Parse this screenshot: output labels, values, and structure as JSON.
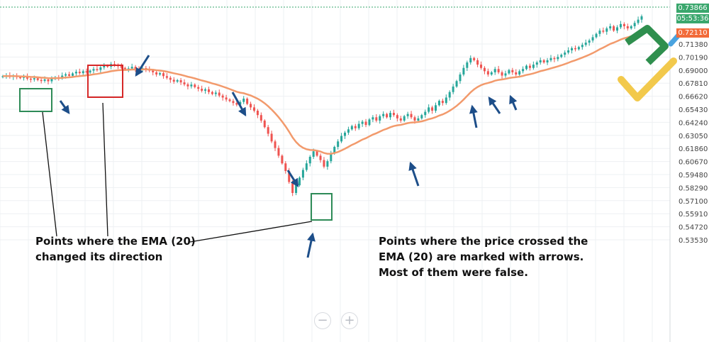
{
  "chart_data": {
    "type": "candlestick",
    "yaxis_ticks": [
      "0.71380",
      "0.70190",
      "0.69000",
      "0.67810",
      "0.66620",
      "0.65430",
      "0.64240",
      "0.63050",
      "0.61860",
      "0.60670",
      "0.59480",
      "0.58290",
      "0.57100",
      "0.55910",
      "0.54720",
      "0.53530"
    ],
    "last_price": "0.73866",
    "timer": "05:53:36",
    "ema_price": "0.72110",
    "ema_period": 20,
    "candles_close": [
      0.6845,
      0.6852,
      0.6838,
      0.6847,
      0.6836,
      0.6829,
      0.6841,
      0.6822,
      0.6815,
      0.6826,
      0.681,
      0.6802,
      0.6815,
      0.6798,
      0.682,
      0.6835,
      0.6828,
      0.685,
      0.6862,
      0.6848,
      0.687,
      0.6885,
      0.6872,
      0.689,
      0.6878,
      0.6895,
      0.691,
      0.6902,
      0.6925,
      0.694,
      0.6932,
      0.6955,
      0.6945,
      0.6938,
      0.692,
      0.6905,
      0.6915,
      0.693,
      0.6912,
      0.69,
      0.6918,
      0.6906,
      0.6895,
      0.688,
      0.686,
      0.6872,
      0.6845,
      0.683,
      0.6812,
      0.6795,
      0.6808,
      0.6788,
      0.677,
      0.6752,
      0.6768,
      0.6745,
      0.673,
      0.6712,
      0.6725,
      0.67,
      0.6682,
      0.6695,
      0.6668,
      0.665,
      0.6632,
      0.6618,
      0.66,
      0.6585,
      0.661,
      0.664,
      0.6592,
      0.656,
      0.653,
      0.649,
      0.644,
      0.638,
      0.632,
      0.625,
      0.619,
      0.612,
      0.605,
      0.598,
      0.588,
      0.578,
      0.585,
      0.592,
      0.599,
      0.605,
      0.611,
      0.616,
      0.612,
      0.608,
      0.602,
      0.607,
      0.614,
      0.62,
      0.625,
      0.63,
      0.633,
      0.636,
      0.639,
      0.637,
      0.641,
      0.643,
      0.64,
      0.645,
      0.647,
      0.644,
      0.648,
      0.65,
      0.647,
      0.651,
      0.649,
      0.646,
      0.644,
      0.648,
      0.65,
      0.647,
      0.644,
      0.646,
      0.649,
      0.652,
      0.656,
      0.653,
      0.658,
      0.662,
      0.66,
      0.665,
      0.67,
      0.675,
      0.68,
      0.686,
      0.692,
      0.697,
      0.701,
      0.699,
      0.695,
      0.692,
      0.689,
      0.686,
      0.688,
      0.691,
      0.688,
      0.685,
      0.687,
      0.69,
      0.688,
      0.686,
      0.689,
      0.691,
      0.694,
      0.692,
      0.695,
      0.697,
      0.699,
      0.697,
      0.699,
      0.701,
      0.7,
      0.702,
      0.704,
      0.706,
      0.708,
      0.71,
      0.709,
      0.711,
      0.713,
      0.715,
      0.717,
      0.72,
      0.723,
      0.726,
      0.725,
      0.728,
      0.73,
      0.726,
      0.729,
      0.732,
      0.73,
      0.728,
      0.73,
      0.733,
      0.736,
      0.739
    ]
  },
  "annotations": {
    "left_note": "Points where the EMA (20)\nchanged its direction",
    "right_note": "Points where the price crossed the\nEMA (20) are marked with arrows.\nMost of them were false."
  },
  "price_tags": {
    "last": "0.73866",
    "timer": "05:53:36",
    "ema": "0.72110"
  },
  "zoom": {
    "out": "−",
    "in": "+"
  },
  "colors": {
    "up": "#26a69a",
    "down": "#ef5350",
    "ema": "#f29a6c",
    "arrow": "#1d4e89",
    "box_green": "#2e8b57",
    "box_red": "#d62828",
    "grid": "#eef0f3",
    "axis_text": "#444444"
  }
}
